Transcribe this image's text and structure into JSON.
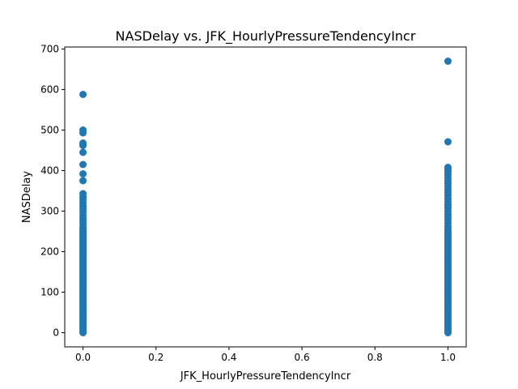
{
  "chart_data": {
    "type": "scatter",
    "title": "NASDelay vs. JFK_HourlyPressureTendencyIncr",
    "xlabel": "JFK_HourlyPressureTendencyIncr",
    "ylabel": "NASDelay",
    "xlim": [
      -0.05,
      1.05
    ],
    "ylim": [
      -35,
      705
    ],
    "x_ticks": [
      0.0,
      0.2,
      0.4,
      0.6,
      0.8,
      1.0
    ],
    "x_tick_labels": [
      "0.0",
      "0.2",
      "0.4",
      "0.6",
      "0.8",
      "1.0"
    ],
    "y_ticks": [
      0,
      100,
      200,
      300,
      400,
      500,
      600,
      700
    ],
    "y_tick_labels": [
      "0",
      "100",
      "200",
      "300",
      "400",
      "500",
      "600",
      "700"
    ],
    "grid": false,
    "marker_color": "#1f77b4",
    "series": [
      {
        "points": [
          {
            "x": 0,
            "y": 0
          },
          {
            "x": 0,
            "y": 5
          },
          {
            "x": 0,
            "y": 10
          },
          {
            "x": 0,
            "y": 15
          },
          {
            "x": 0,
            "y": 20
          },
          {
            "x": 0,
            "y": 25
          },
          {
            "x": 0,
            "y": 30
          },
          {
            "x": 0,
            "y": 35
          },
          {
            "x": 0,
            "y": 40
          },
          {
            "x": 0,
            "y": 45
          },
          {
            "x": 0,
            "y": 50
          },
          {
            "x": 0,
            "y": 55
          },
          {
            "x": 0,
            "y": 60
          },
          {
            "x": 0,
            "y": 65
          },
          {
            "x": 0,
            "y": 70
          },
          {
            "x": 0,
            "y": 75
          },
          {
            "x": 0,
            "y": 80
          },
          {
            "x": 0,
            "y": 85
          },
          {
            "x": 0,
            "y": 90
          },
          {
            "x": 0,
            "y": 95
          },
          {
            "x": 0,
            "y": 100
          },
          {
            "x": 0,
            "y": 105
          },
          {
            "x": 0,
            "y": 110
          },
          {
            "x": 0,
            "y": 115
          },
          {
            "x": 0,
            "y": 120
          },
          {
            "x": 0,
            "y": 125
          },
          {
            "x": 0,
            "y": 130
          },
          {
            "x": 0,
            "y": 135
          },
          {
            "x": 0,
            "y": 140
          },
          {
            "x": 0,
            "y": 145
          },
          {
            "x": 0,
            "y": 150
          },
          {
            "x": 0,
            "y": 155
          },
          {
            "x": 0,
            "y": 160
          },
          {
            "x": 0,
            "y": 165
          },
          {
            "x": 0,
            "y": 170
          },
          {
            "x": 0,
            "y": 175
          },
          {
            "x": 0,
            "y": 180
          },
          {
            "x": 0,
            "y": 185
          },
          {
            "x": 0,
            "y": 190
          },
          {
            "x": 0,
            "y": 195
          },
          {
            "x": 0,
            "y": 200
          },
          {
            "x": 0,
            "y": 205
          },
          {
            "x": 0,
            "y": 210
          },
          {
            "x": 0,
            "y": 215
          },
          {
            "x": 0,
            "y": 220
          },
          {
            "x": 0,
            "y": 225
          },
          {
            "x": 0,
            "y": 230
          },
          {
            "x": 0,
            "y": 235
          },
          {
            "x": 0,
            "y": 240
          },
          {
            "x": 0,
            "y": 245
          },
          {
            "x": 0,
            "y": 250
          },
          {
            "x": 0,
            "y": 255
          },
          {
            "x": 0,
            "y": 260
          },
          {
            "x": 0,
            "y": 268
          },
          {
            "x": 0,
            "y": 275
          },
          {
            "x": 0,
            "y": 282
          },
          {
            "x": 0,
            "y": 290
          },
          {
            "x": 0,
            "y": 298
          },
          {
            "x": 0,
            "y": 305
          },
          {
            "x": 0,
            "y": 312
          },
          {
            "x": 0,
            "y": 320
          },
          {
            "x": 0,
            "y": 328
          },
          {
            "x": 0,
            "y": 335
          },
          {
            "x": 0,
            "y": 343
          },
          {
            "x": 0,
            "y": 375
          },
          {
            "x": 0,
            "y": 392
          },
          {
            "x": 0,
            "y": 415
          },
          {
            "x": 0,
            "y": 445
          },
          {
            "x": 0,
            "y": 462
          },
          {
            "x": 0,
            "y": 468
          },
          {
            "x": 0,
            "y": 493
          },
          {
            "x": 0,
            "y": 500
          },
          {
            "x": 0,
            "y": 588
          },
          {
            "x": 1,
            "y": 0
          },
          {
            "x": 1,
            "y": 5
          },
          {
            "x": 1,
            "y": 10
          },
          {
            "x": 1,
            "y": 15
          },
          {
            "x": 1,
            "y": 20
          },
          {
            "x": 1,
            "y": 25
          },
          {
            "x": 1,
            "y": 30
          },
          {
            "x": 1,
            "y": 35
          },
          {
            "x": 1,
            "y": 40
          },
          {
            "x": 1,
            "y": 45
          },
          {
            "x": 1,
            "y": 50
          },
          {
            "x": 1,
            "y": 55
          },
          {
            "x": 1,
            "y": 60
          },
          {
            "x": 1,
            "y": 65
          },
          {
            "x": 1,
            "y": 70
          },
          {
            "x": 1,
            "y": 75
          },
          {
            "x": 1,
            "y": 80
          },
          {
            "x": 1,
            "y": 85
          },
          {
            "x": 1,
            "y": 90
          },
          {
            "x": 1,
            "y": 95
          },
          {
            "x": 1,
            "y": 100
          },
          {
            "x": 1,
            "y": 105
          },
          {
            "x": 1,
            "y": 110
          },
          {
            "x": 1,
            "y": 115
          },
          {
            "x": 1,
            "y": 120
          },
          {
            "x": 1,
            "y": 125
          },
          {
            "x": 1,
            "y": 130
          },
          {
            "x": 1,
            "y": 135
          },
          {
            "x": 1,
            "y": 140
          },
          {
            "x": 1,
            "y": 145
          },
          {
            "x": 1,
            "y": 150
          },
          {
            "x": 1,
            "y": 155
          },
          {
            "x": 1,
            "y": 160
          },
          {
            "x": 1,
            "y": 165
          },
          {
            "x": 1,
            "y": 170
          },
          {
            "x": 1,
            "y": 175
          },
          {
            "x": 1,
            "y": 180
          },
          {
            "x": 1,
            "y": 185
          },
          {
            "x": 1,
            "y": 190
          },
          {
            "x": 1,
            "y": 195
          },
          {
            "x": 1,
            "y": 200
          },
          {
            "x": 1,
            "y": 205
          },
          {
            "x": 1,
            "y": 210
          },
          {
            "x": 1,
            "y": 215
          },
          {
            "x": 1,
            "y": 220
          },
          {
            "x": 1,
            "y": 225
          },
          {
            "x": 1,
            "y": 230
          },
          {
            "x": 1,
            "y": 235
          },
          {
            "x": 1,
            "y": 240
          },
          {
            "x": 1,
            "y": 245
          },
          {
            "x": 1,
            "y": 250
          },
          {
            "x": 1,
            "y": 255
          },
          {
            "x": 1,
            "y": 262
          },
          {
            "x": 1,
            "y": 270
          },
          {
            "x": 1,
            "y": 278
          },
          {
            "x": 1,
            "y": 285
          },
          {
            "x": 1,
            "y": 292
          },
          {
            "x": 1,
            "y": 300
          },
          {
            "x": 1,
            "y": 308
          },
          {
            "x": 1,
            "y": 315
          },
          {
            "x": 1,
            "y": 322
          },
          {
            "x": 1,
            "y": 330
          },
          {
            "x": 1,
            "y": 338
          },
          {
            "x": 1,
            "y": 345
          },
          {
            "x": 1,
            "y": 352
          },
          {
            "x": 1,
            "y": 360
          },
          {
            "x": 1,
            "y": 368
          },
          {
            "x": 1,
            "y": 375
          },
          {
            "x": 1,
            "y": 382
          },
          {
            "x": 1,
            "y": 390
          },
          {
            "x": 1,
            "y": 397
          },
          {
            "x": 1,
            "y": 403
          },
          {
            "x": 1,
            "y": 408
          },
          {
            "x": 1,
            "y": 471
          },
          {
            "x": 1,
            "y": 670
          }
        ]
      }
    ]
  }
}
